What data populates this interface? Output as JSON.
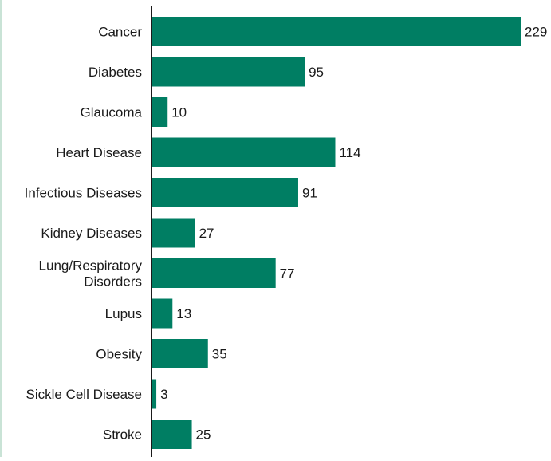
{
  "colors": {
    "bar": "#007e63",
    "axis": "#1a1a1a",
    "frame_rule": "#c9e3d6",
    "text": "#1a1a1a"
  },
  "chart_data": {
    "type": "bar",
    "orientation": "horizontal",
    "title": "",
    "xlabel": "",
    "ylabel": "",
    "grid": false,
    "legend": "none",
    "categories": [
      "Cancer",
      "Diabetes",
      "Glaucoma",
      "Heart Disease",
      "Infectious Diseases",
      "Kidney Diseases",
      "Lung/Respiratory Disorders",
      "Lupus",
      "Obesity",
      "Sickle Cell Disease",
      "Stroke"
    ],
    "category_lines": [
      [
        "Cancer"
      ],
      [
        "Diabetes"
      ],
      [
        "Glaucoma"
      ],
      [
        "Heart Disease"
      ],
      [
        "Infectious Diseases"
      ],
      [
        "Kidney Diseases"
      ],
      [
        "Lung/Respiratory",
        "Disorders"
      ],
      [
        "Lupus"
      ],
      [
        "Obesity"
      ],
      [
        "Sickle Cell Disease"
      ],
      [
        "Stroke"
      ]
    ],
    "values": [
      229,
      95,
      10,
      114,
      91,
      27,
      77,
      13,
      35,
      3,
      25
    ],
    "data_labels": [
      "229",
      "95",
      "10",
      "114",
      "91",
      "27",
      "77",
      "13",
      "35",
      "3",
      "25"
    ]
  }
}
